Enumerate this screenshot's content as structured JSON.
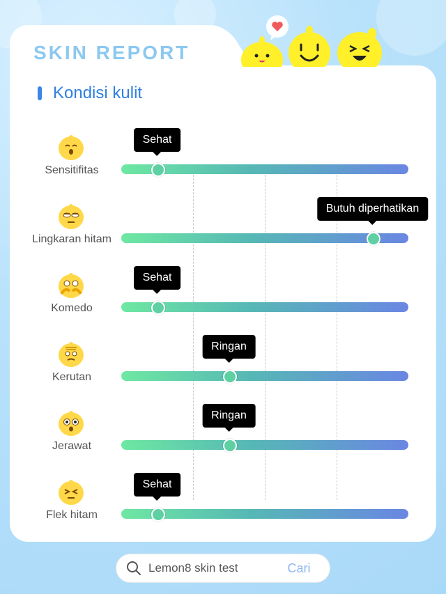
{
  "header": {
    "report_title": "SKIN REPORT"
  },
  "section": {
    "title": "Kondisi kulit"
  },
  "rows": [
    {
      "label": "Sensitifitas",
      "status": "Sehat",
      "level": 0.125,
      "face_icon": "smiling-face-icon"
    },
    {
      "label": "Lingkaran hitam",
      "status": "Butuh diperhatikan",
      "level": 0.875,
      "face_icon": "tired-face-icon"
    },
    {
      "label": "Komedo",
      "status": "Sehat",
      "level": 0.125,
      "face_icon": "hands-on-face-icon"
    },
    {
      "label": "Kerutan",
      "status": "Ringan",
      "level": 0.375,
      "face_icon": "wrinkled-face-icon"
    },
    {
      "label": "Jerawat",
      "status": "Ringan",
      "level": 0.375,
      "face_icon": "surprised-face-icon"
    },
    {
      "label": "Flek hitam",
      "status": "Sehat",
      "level": 0.125,
      "face_icon": "squinting-face-icon"
    }
  ],
  "search": {
    "query": "Lemon8 skin test",
    "button_label": "Cari"
  },
  "colors": {
    "accent": "#2f80df",
    "report_title": "#8cc8f0",
    "track_start": "#6ee8a2",
    "track_end": "#6a86e3",
    "mascot_yellow": "#fff02a"
  }
}
